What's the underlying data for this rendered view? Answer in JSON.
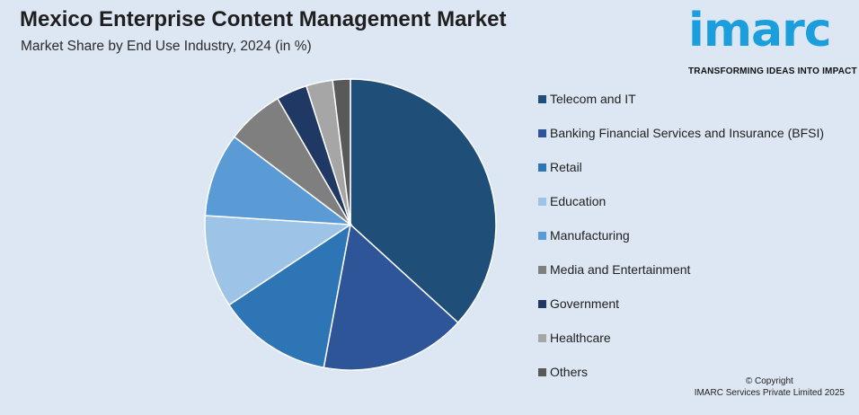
{
  "header": {
    "title": "Mexico Enterprise Content Management Market",
    "subtitle": "Market Share by End Use Industry, 2024 (in %)"
  },
  "logo": {
    "word": "imarc",
    "tagline": "TRANSFORMING IDEAS INTO IMPACT",
    "color": "#1a9fdc"
  },
  "footer": {
    "copyright_line1": "© Copyright",
    "copyright_line2": "IMARC Services Private Limited 2025"
  },
  "chart_data": {
    "type": "pie",
    "categories": [
      "Telecom and IT",
      "Banking Financial Services and Insurance (BFSI)",
      "Retail",
      "Education",
      "Manufacturing",
      "Media and Entertainment",
      "Government",
      "Healthcare",
      "Others"
    ],
    "values": [
      37.5,
      16.5,
      13,
      10.5,
      9.5,
      6.5,
      3.5,
      3,
      2
    ],
    "colors": [
      "#1f4e79",
      "#2e5597",
      "#2e75b6",
      "#9dc3e6",
      "#5b9bd5",
      "#7f7f7f",
      "#203864",
      "#a6a6a6",
      "#595959"
    ],
    "start_angle_deg": 0,
    "direction": "clockwise",
    "legend_position": "right"
  }
}
